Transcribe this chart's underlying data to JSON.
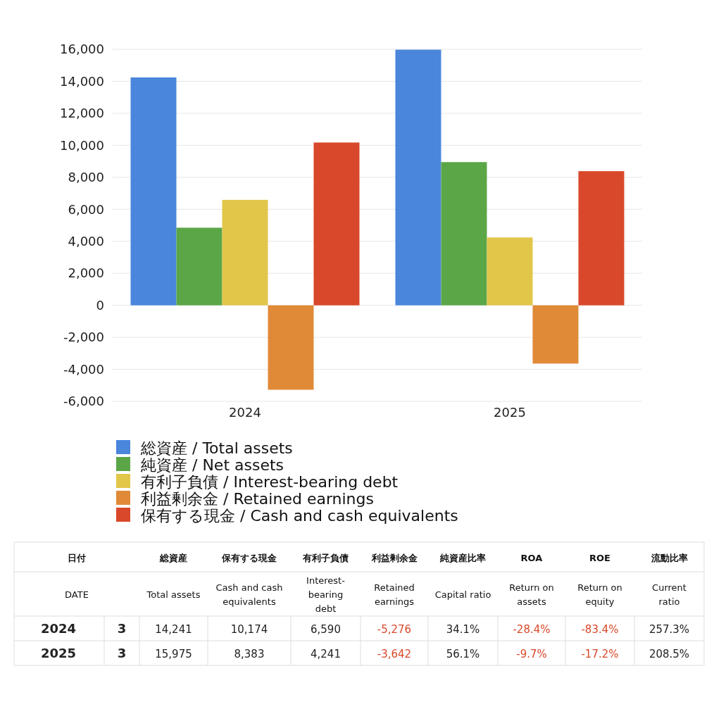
{
  "chart_data": [
    {
      "type": "bar",
      "categories": [
        "2024",
        "2025"
      ],
      "series": [
        {
          "name": "総資産 / Total assets",
          "color": "#4a86dc",
          "values": [
            14241,
            15975
          ]
        },
        {
          "name": "純資産 / Net assets",
          "color": "#5ba647",
          "values": [
            4850,
            8950
          ]
        },
        {
          "name": "有利子負債 / Interest-bearing debt",
          "color": "#e2c64a",
          "values": [
            6590,
            4241
          ]
        },
        {
          "name": "利益剰余金 / Retained earnings",
          "color": "#e08a38",
          "values": [
            -5276,
            -3642
          ]
        },
        {
          "name": "保有する現金 /  Cash and cash equivalents",
          "color": "#d9482a",
          "values": [
            10174,
            8383
          ]
        }
      ],
      "ylim": [
        -6000,
        16000
      ],
      "yticks": [
        {
          "value": -6000,
          "label": "-6,000"
        },
        {
          "value": -4000,
          "label": "-4,000"
        },
        {
          "value": -2000,
          "label": "-2,000"
        },
        0,
        {
          "value": 2000,
          "label": "2,000"
        },
        {
          "value": 4000,
          "label": "4,000"
        },
        {
          "value": 6000,
          "label": "6,000"
        },
        {
          "value": 8000,
          "label": "8,000"
        },
        {
          "value": 10000,
          "label": "10,000"
        },
        {
          "value": 12000,
          "label": "12,000"
        },
        {
          "value": 14000,
          "label": "14,000"
        },
        {
          "value": 16000,
          "label": "16,000"
        }
      ],
      "grid": "y",
      "legend": "bottom"
    },
    {
      "type": "other",
      "categories": [
        "日付\nDATE",
        null,
        "総資産\nTotal assets",
        "保有する現金\nCash and cash\nequivalents",
        "有利子負債\nInterest-\nbearing\ndebt",
        "利益剰余金\nRetained\nearnings",
        "純資産比率\nCapital ratio",
        "ROA\nReturn on\nassets",
        "ROE\nReturn on\nequity",
        "流動比率\nCurrent\nratio"
      ],
      "cell_labels": [
        [
          "2024",
          "3",
          "14,241",
          "10,174",
          "6,590",
          "-5,276",
          "34.1%",
          "-28.4%",
          "-83.4%",
          "257.3%"
        ],
        [
          "2025",
          "3",
          "15,975",
          "8,383",
          "4,241",
          "-3,642",
          "56.1%",
          "-9.7%",
          "-17.2%",
          "208.5%"
        ]
      ]
    }
  ]
}
